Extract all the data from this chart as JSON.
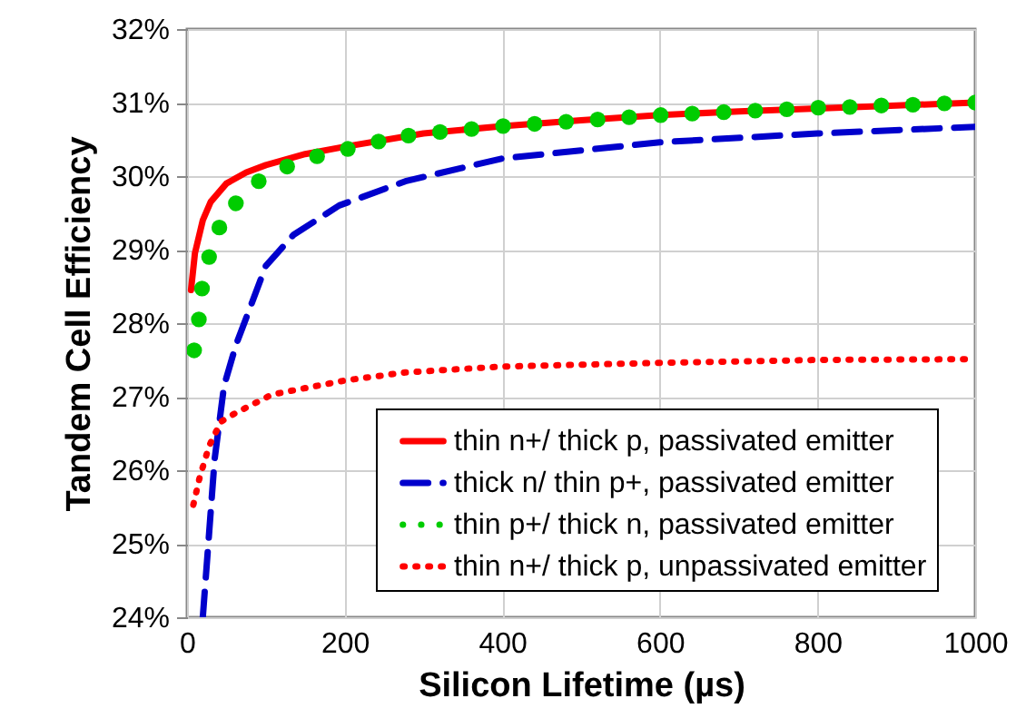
{
  "chart_data": {
    "type": "line",
    "xlabel": "Silicon Lifetime (µs)",
    "ylabel": "Tandem Cell Efficiency",
    "xlim": [
      0,
      1000
    ],
    "xticks": [
      0,
      200,
      400,
      600,
      800,
      1000
    ],
    "ylim": [
      24,
      32
    ],
    "yticks": [
      {
        "value": 24,
        "label": "24%"
      },
      {
        "value": 25,
        "label": "25%"
      },
      {
        "value": 26,
        "label": "26%"
      },
      {
        "value": 27,
        "label": "27%"
      },
      {
        "value": 28,
        "label": "28%"
      },
      {
        "value": 29,
        "label": "29%"
      },
      {
        "value": 30,
        "label": "30%"
      },
      {
        "value": 31,
        "label": "31%"
      },
      {
        "value": 32,
        "label": "32%"
      }
    ],
    "grid": true,
    "legend": "bottom right",
    "series": [
      {
        "name": "thin n+/ thick p, passivated emitter",
        "color": "#ff0000",
        "type": "line",
        "line_style": "solid",
        "x": [
          5,
          10,
          20,
          30,
          50,
          75,
          100,
          150,
          200,
          300,
          400,
          500,
          600,
          700,
          800,
          900,
          1000
        ],
        "values": [
          28.45,
          28.95,
          29.4,
          29.65,
          29.9,
          30.05,
          30.15,
          30.3,
          30.4,
          30.58,
          30.68,
          30.76,
          30.83,
          30.88,
          30.92,
          30.96,
          31.0
        ]
      },
      {
        "name": "thick n/ thin p+, passivated emitter",
        "color": "#0000cc",
        "type": "line",
        "line_style": "dashed",
        "x": [
          20,
          27,
          35,
          47,
          62,
          100,
          135,
          193,
          277,
          400,
          600,
          800,
          1000
        ],
        "values": [
          24.0,
          25.0,
          26.15,
          27.15,
          27.7,
          28.78,
          29.2,
          29.6,
          29.93,
          30.24,
          30.46,
          30.58,
          30.67
        ]
      },
      {
        "name": "thin p+/ thick n, passivated emitter",
        "color": "#00cc00",
        "type": "scatter",
        "marker": "circle",
        "x": [
          9,
          15,
          19,
          28,
          41,
          62,
          91,
          127,
          165,
          204,
          243,
          281,
          321,
          361,
          401,
          441,
          481,
          521,
          561,
          601,
          641,
          681,
          721,
          761,
          801,
          841,
          881,
          921,
          961,
          1000
        ],
        "values": [
          27.63,
          28.05,
          28.47,
          28.9,
          29.3,
          29.63,
          29.93,
          30.13,
          30.27,
          30.37,
          30.47,
          30.55,
          30.6,
          30.64,
          30.68,
          30.71,
          30.74,
          30.77,
          30.8,
          30.83,
          30.85,
          30.87,
          30.89,
          30.91,
          30.93,
          30.94,
          30.96,
          30.97,
          30.99,
          31.0
        ]
      },
      {
        "name": "thin n+/ thick p, unpassivated emitter",
        "color": "#ff0000",
        "type": "line",
        "line_style": "dotted",
        "x": [
          8,
          16,
          28,
          43,
          62,
          108,
          200,
          277,
          400,
          600,
          800,
          1000
        ],
        "values": [
          25.53,
          25.9,
          26.33,
          26.66,
          26.78,
          27.03,
          27.22,
          27.33,
          27.41,
          27.46,
          27.5,
          27.51
        ]
      }
    ]
  }
}
